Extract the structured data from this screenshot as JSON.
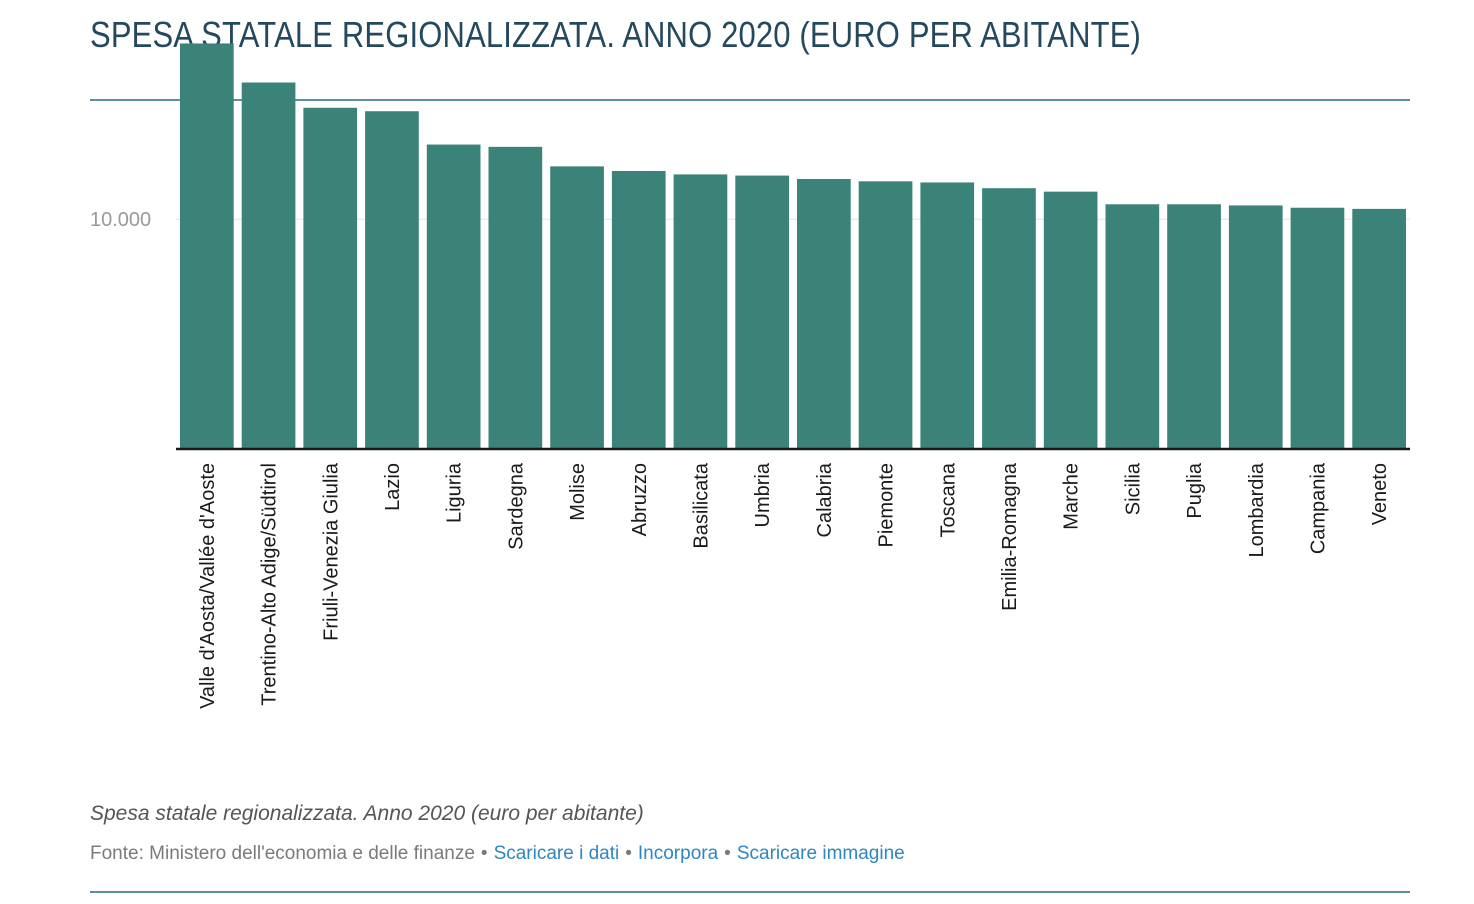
{
  "title": "SPESA STATALE REGIONALIZZATA. ANNO 2020 (EURO PER ABITANTE)",
  "caption": "Spesa statale regionalizzata. Anno 2020 (euro per abitante)",
  "footer": {
    "source": "Fonte: Ministero dell'economia e delle finanze",
    "separator": "•",
    "links": {
      "download_data": "Scaricare i dati",
      "embed": "Incorpora",
      "download_image": "Scaricare immagine"
    }
  },
  "colors": {
    "bar": "#3b8378",
    "title": "#24495f",
    "rule": "#5d8fa3",
    "link": "#2e86c1"
  },
  "chart_data": {
    "type": "bar",
    "title": "SPESA STATALE REGIONALIZZATA. ANNO 2020 (EURO PER ABITANTE)",
    "xlabel": "",
    "ylabel": "",
    "ylim": [
      0,
      17800
    ],
    "yticks": [
      {
        "value": 10000,
        "label": "10.000"
      }
    ],
    "grid": true,
    "legend": "none",
    "categories": [
      "Valle d'Aosta/Vallée d'Aoste",
      "Trentino-Alto Adige/Südtirol",
      "Friuli-Venezia Giulia",
      "Lazio",
      "Liguria",
      "Sardegna",
      "Molise",
      "Abruzzo",
      "Basilicata",
      "Umbria",
      "Calabria",
      "Piemonte",
      "Toscana",
      "Emilia-Romagna",
      "Marche",
      "Sicilia",
      "Puglia",
      "Lombardia",
      "Campania",
      "Veneto"
    ],
    "values": [
      17650,
      15950,
      14850,
      14700,
      13250,
      13150,
      12300,
      12100,
      11950,
      11900,
      11750,
      11650,
      11600,
      11350,
      11200,
      10650,
      10650,
      10600,
      10500,
      10450
    ]
  }
}
